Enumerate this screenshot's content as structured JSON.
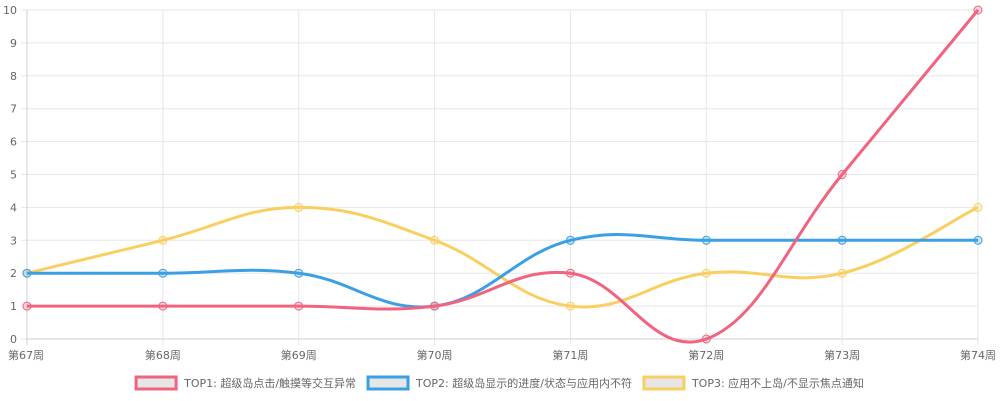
{
  "chart_data": {
    "type": "line",
    "categories": [
      "第67周",
      "第68周",
      "第69周",
      "第70周",
      "第71周",
      "第72周",
      "第73周",
      "第74周"
    ],
    "ylim": [
      0,
      10
    ],
    "y_ticks": [
      0,
      1,
      2,
      3,
      4,
      5,
      6,
      7,
      8,
      9,
      10
    ],
    "grid": true,
    "legend_position": "bottom",
    "series": [
      {
        "name": "TOP1: 超级岛点击/触摸等交互异常",
        "color": "#f0647f",
        "values": [
          1,
          1,
          1,
          1,
          2,
          0,
          5,
          10
        ]
      },
      {
        "name": "TOP2: 超级岛显示的进度/状态与应用内不符",
        "color": "#3aa0e3",
        "values": [
          2,
          2,
          2,
          1,
          3,
          3,
          3,
          3
        ]
      },
      {
        "name": "TOP3: 应用不上岛/不显示焦点通知",
        "color": "#f8cf60",
        "values": [
          2,
          3,
          4,
          3,
          1,
          2,
          2,
          4
        ]
      }
    ]
  }
}
